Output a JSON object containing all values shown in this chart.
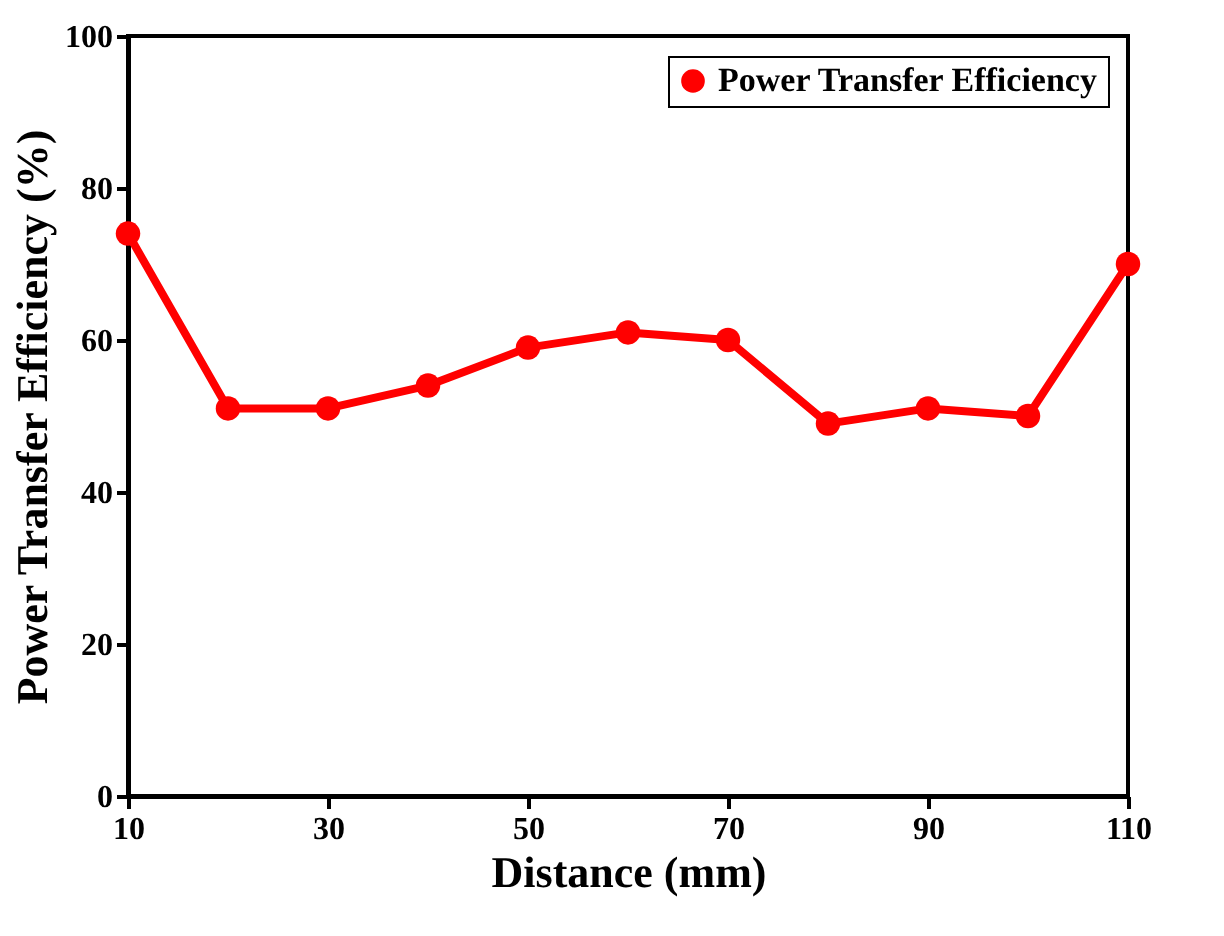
{
  "chart_data": {
    "type": "line",
    "xlabel": "Distance (mm)",
    "ylabel": "Power Transfer Efficiency (%)",
    "x": [
      10,
      20,
      30,
      40,
      50,
      60,
      70,
      80,
      90,
      100,
      110
    ],
    "series": [
      {
        "name": "Power Transfer Efficiency",
        "color": "#ff0000",
        "values": [
          74,
          51,
          51,
          54,
          59,
          61,
          60,
          49,
          51,
          50,
          70
        ]
      }
    ],
    "xlim": [
      10,
      110
    ],
    "xticks": [
      10,
      30,
      50,
      70,
      90,
      110
    ],
    "ylim": [
      0,
      100
    ],
    "yticks": [
      0,
      20,
      40,
      60,
      80,
      100
    ],
    "marker": "circle",
    "line_style": "solid",
    "legend": "top right",
    "grid": false
  }
}
